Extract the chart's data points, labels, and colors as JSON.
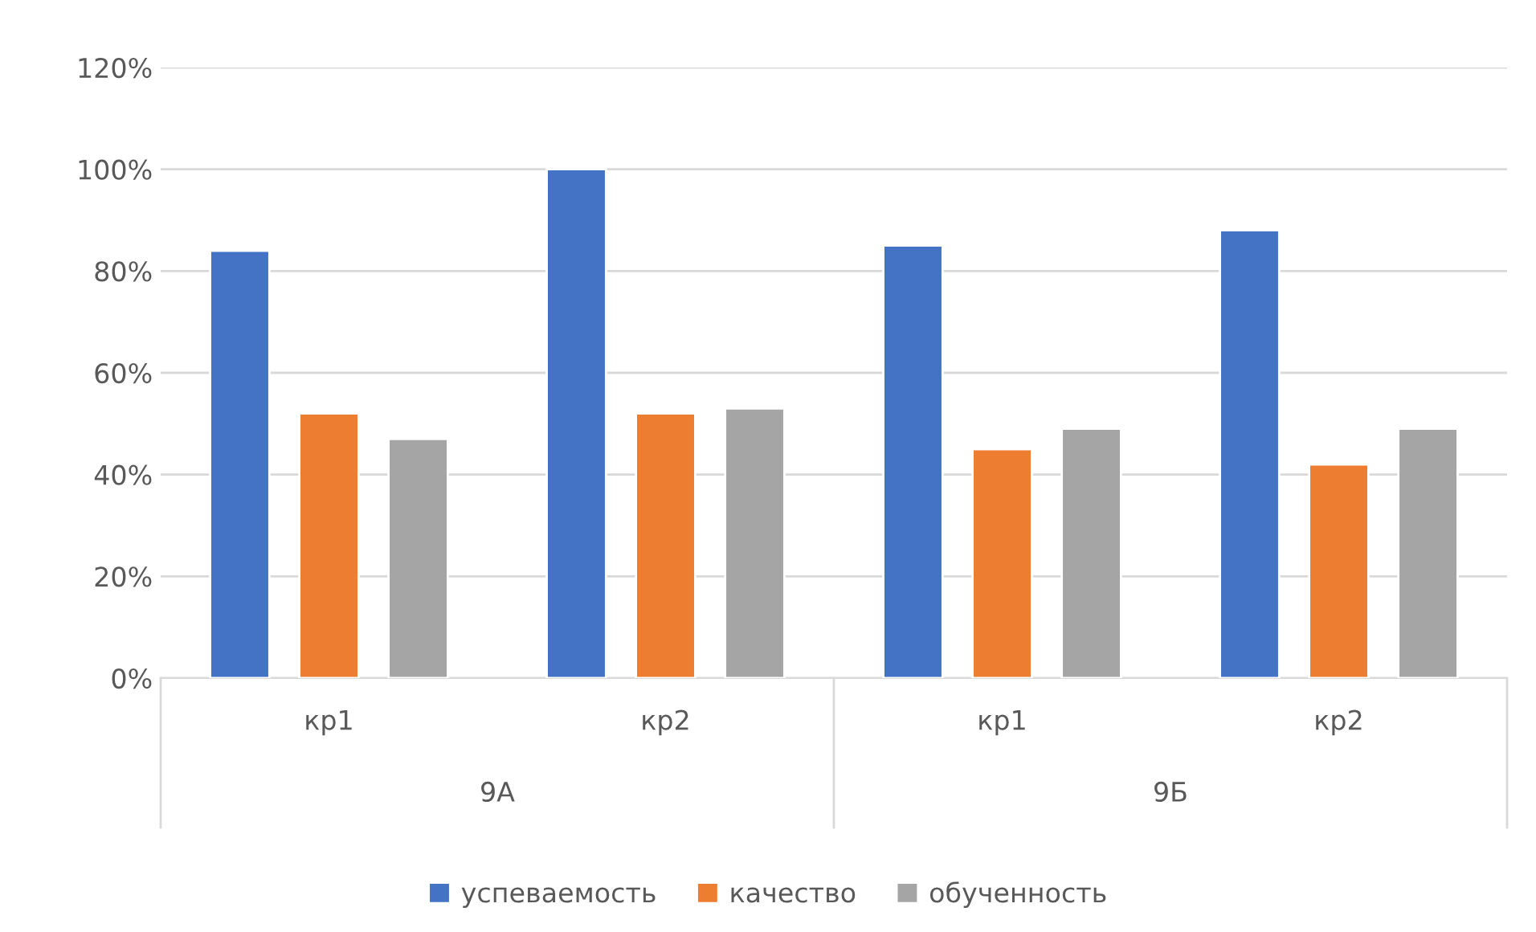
{
  "chart_data": {
    "type": "bar",
    "categories": [
      "кр1",
      "кр2",
      "кр1",
      "кр2"
    ],
    "series": [
      {
        "name": "успеваемость",
        "color": "#4472c4",
        "values": [
          84,
          100,
          85,
          88
        ]
      },
      {
        "name": "качество",
        "color": "#ed7d31",
        "values": [
          52,
          52,
          45,
          42
        ]
      },
      {
        "name": "обученность",
        "color": "#a5a5a5",
        "values": [
          47,
          53,
          49,
          49
        ]
      }
    ],
    "annotations": [
      "9А",
      "9Б"
    ],
    "ylim": [
      0,
      120
    ],
    "yticks": [
      {
        "value": 0,
        "label": "0%"
      },
      {
        "value": 20,
        "label": "20%"
      },
      {
        "value": 40,
        "label": "40%"
      },
      {
        "value": 60,
        "label": "60%"
      },
      {
        "value": 80,
        "label": "80%"
      },
      {
        "value": 100,
        "label": "100%"
      },
      {
        "value": 120,
        "label": "120%"
      }
    ],
    "grid": "y",
    "legend": "bottom"
  }
}
